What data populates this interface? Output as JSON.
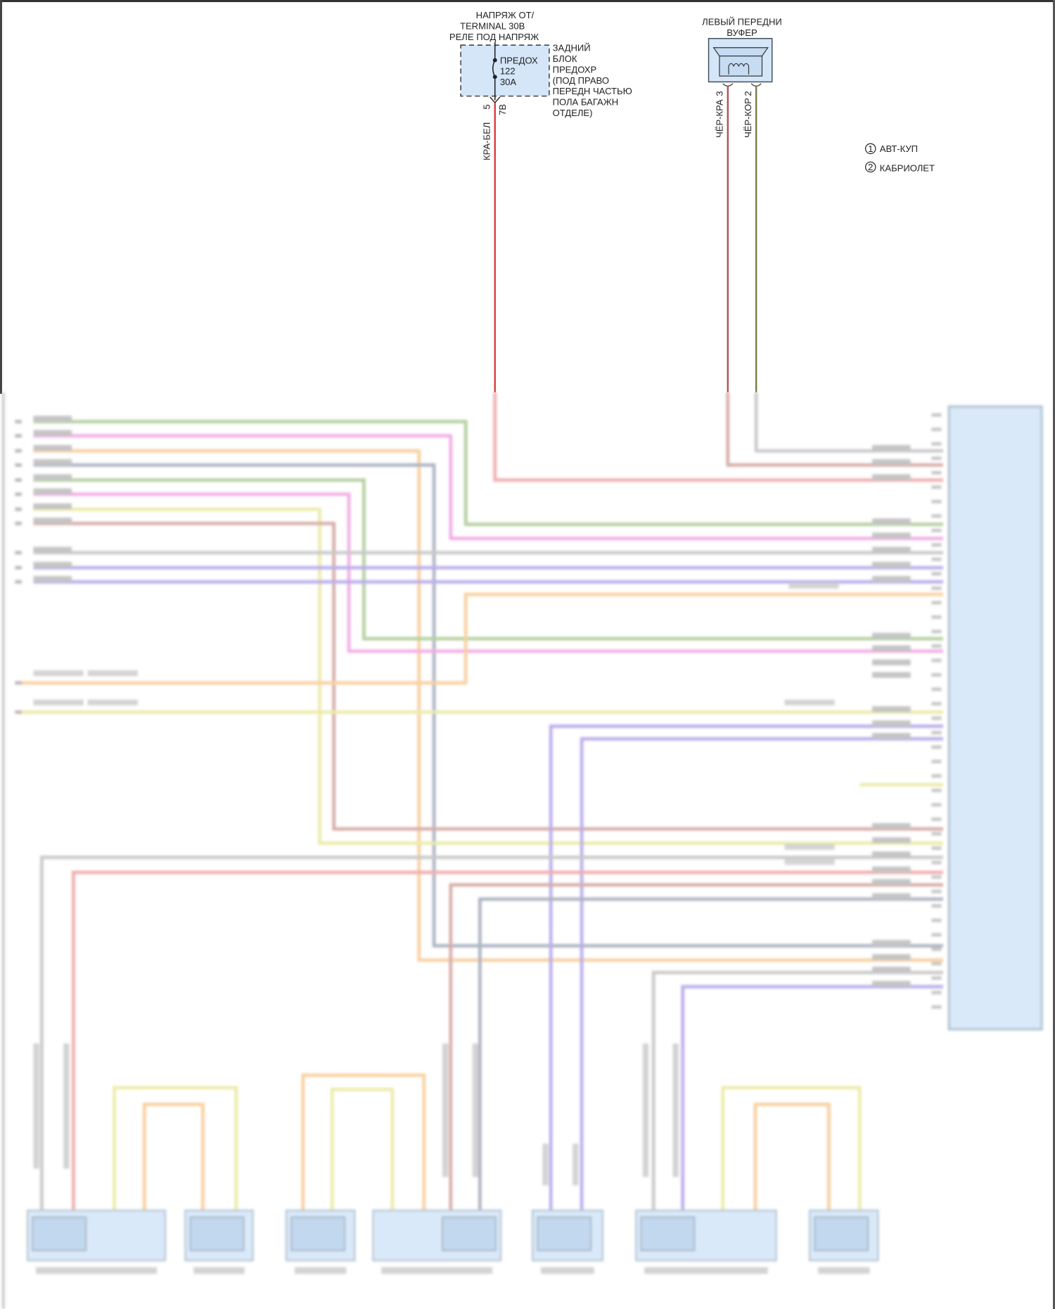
{
  "supply": {
    "title_lines": [
      "НАПРЯЖ ОТ/",
      "TERMINAL 30B",
      "РЕЛЕ ПОД НАПРЯЖ"
    ],
    "fuse_label_lines": [
      "ПРЕДОХ",
      "122",
      "30A"
    ],
    "block_label_lines": [
      "ЗАДНИЙ",
      "БЛОК",
      "ПРЕДОХР",
      "(ПОД ПРАВО",
      "ПЕРЕДН ЧАСТЬЮ",
      "ПОЛА БАГАЖН",
      "ОТДЕЛЕ)"
    ],
    "pin_left": "5",
    "pin_right": "7B",
    "wire_color_label": "КРА-БЕЛ",
    "wire_color": "#d83a3a"
  },
  "speaker": {
    "title_lines": [
      "ЛЕВЫЙ ПЕРЕДНИ",
      "ВУФЕР"
    ],
    "pins": [
      {
        "pin": "3",
        "wire_label": "ЧЁР-КРА",
        "color": "#b85050"
      },
      {
        "pin": "2",
        "wire_label": "ЧЁР-КОР",
        "color": "#7a7a48"
      }
    ]
  },
  "legend": [
    {
      "num": "1",
      "label": "АВТ-КУП"
    },
    {
      "num": "2",
      "label": "КАБРИОЛЕТ"
    }
  ],
  "colors": {
    "component_fill": "#d4e6f8",
    "component_stroke": "#3a4a5a",
    "green": "#a8c890",
    "pink": "#f0a0e0",
    "orange": "#f8c890",
    "slate": "#a0a8b8",
    "yellow": "#e8e89c",
    "brown": "#d0a098",
    "purple": "#b0a0e8",
    "gray": "#c0c0c0",
    "red": "#f0a0a0"
  }
}
